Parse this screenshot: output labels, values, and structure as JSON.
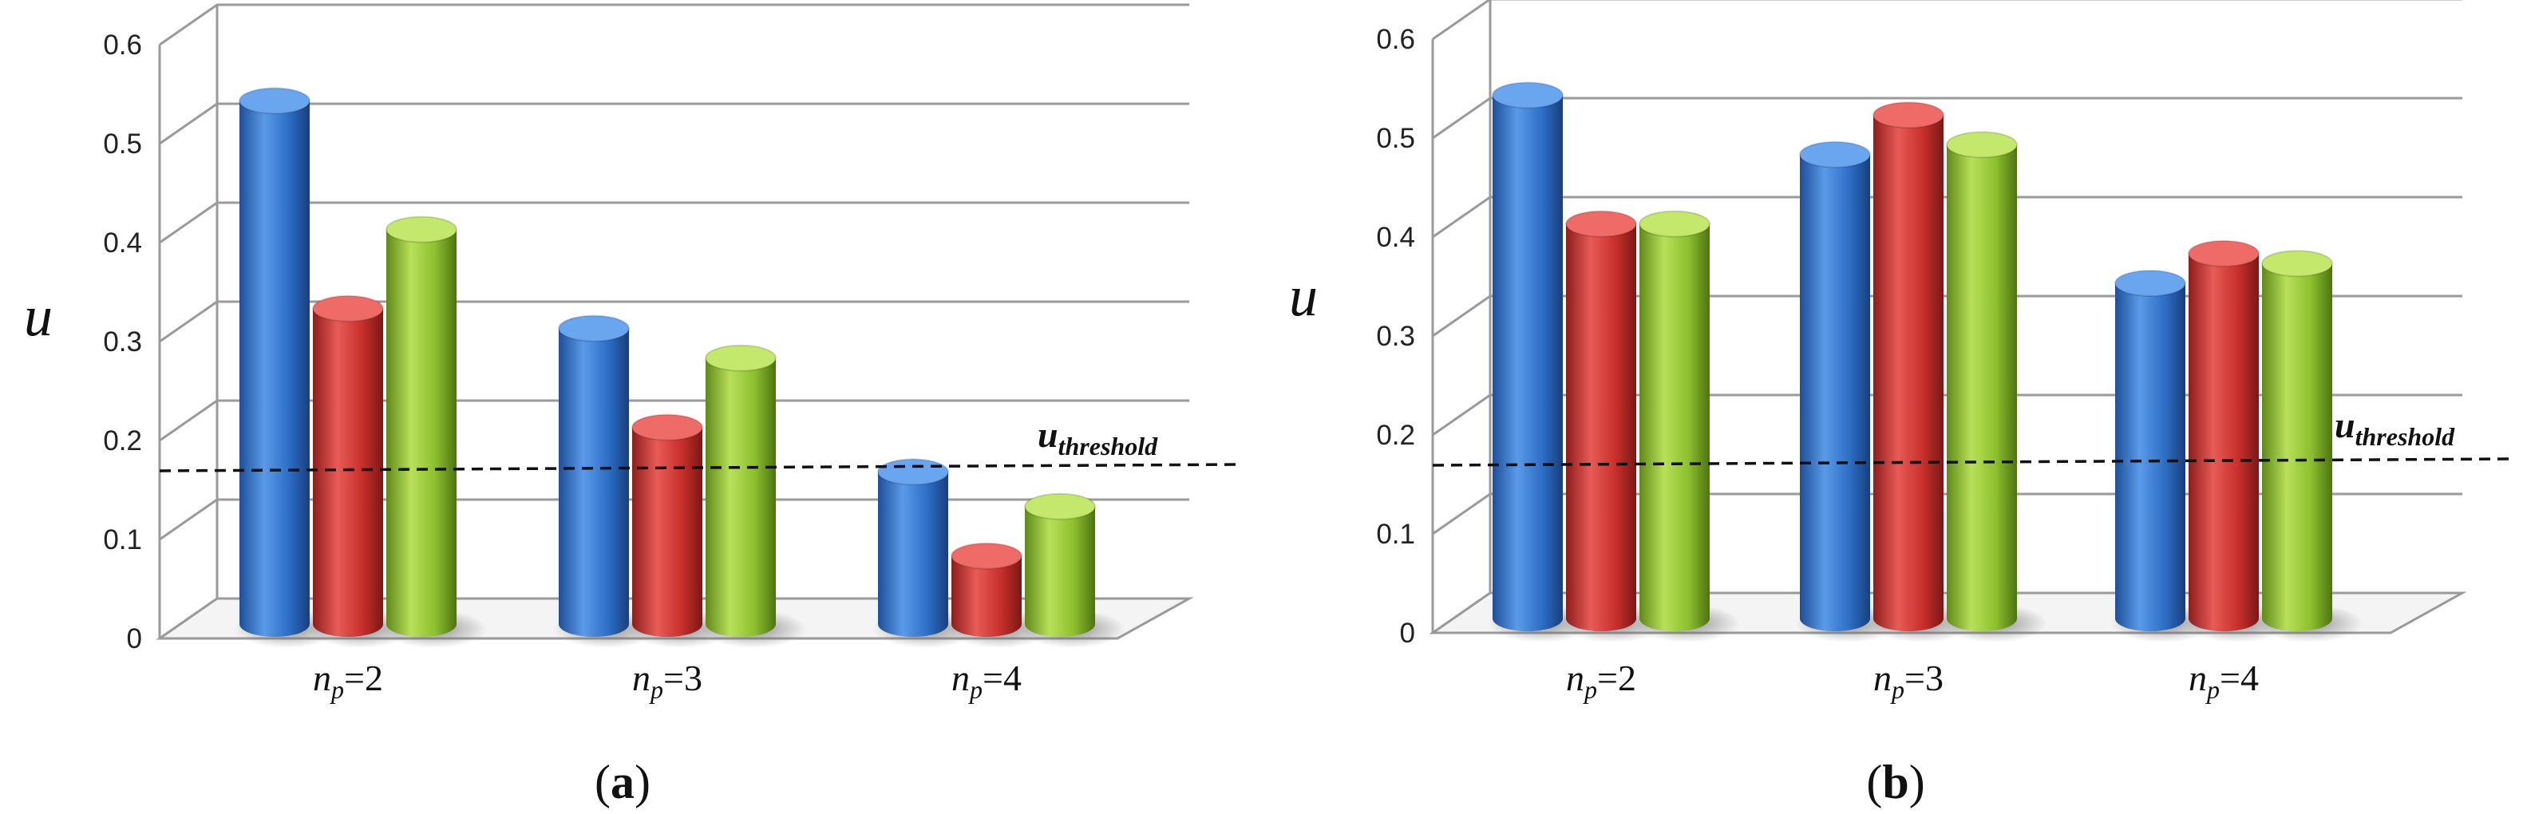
{
  "chart_data": [
    {
      "type": "bar",
      "panel_label": "a",
      "ylabel": "u",
      "ylim": [
        0,
        0.6
      ],
      "yticks": [
        "0",
        "0.1",
        "0.2",
        "0.3",
        "0.4",
        "0.5",
        "0.6"
      ],
      "grid": true,
      "categories": [
        {
          "var": "n",
          "sub": "p",
          "rest": "=2"
        },
        {
          "var": "n",
          "sub": "p",
          "rest": "=3"
        },
        {
          "var": "n",
          "sub": "p",
          "rest": "=4"
        }
      ],
      "series": [
        {
          "color": "#2e6fc7",
          "values": [
            0.54,
            0.31,
            0.165
          ]
        },
        {
          "color": "#c9302c",
          "values": [
            0.33,
            0.21,
            0.08
          ]
        },
        {
          "color": "#8cbf2e",
          "values": [
            0.41,
            0.28,
            0.13
          ]
        }
      ],
      "threshold": {
        "value": 0.165,
        "label_main": "u",
        "label_sub": "threshold"
      }
    },
    {
      "type": "bar",
      "panel_label": "b",
      "ylabel": "u",
      "ylim": [
        0,
        0.6
      ],
      "yticks": [
        "0",
        "0.1",
        "0.2",
        "0.3",
        "0.4",
        "0.5",
        "0.6"
      ],
      "grid": true,
      "categories": [
        {
          "var": "n",
          "sub": "p",
          "rest": "=2"
        },
        {
          "var": "n",
          "sub": "p",
          "rest": "=3"
        },
        {
          "var": "n",
          "sub": "p",
          "rest": "=4"
        }
      ],
      "series": [
        {
          "color": "#2e6fc7",
          "values": [
            0.54,
            0.48,
            0.35
          ]
        },
        {
          "color": "#c9302c",
          "values": [
            0.41,
            0.52,
            0.38
          ]
        },
        {
          "color": "#8cbf2e",
          "values": [
            0.41,
            0.49,
            0.37
          ]
        }
      ],
      "threshold": {
        "value": 0.165,
        "label_main": "u",
        "label_sub": "threshold"
      }
    }
  ]
}
